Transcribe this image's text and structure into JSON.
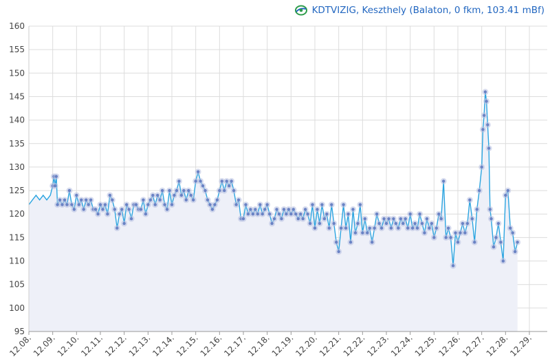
{
  "legend": {
    "label": "KDTVIZIG, Keszthely (Balaton, 0 fkm, 103.41 mBf)"
  },
  "colors": {
    "line": "#2aa4e0",
    "marker": "#6a82c4",
    "markerHalo": "#b6bfe0",
    "area": "#eef0f8",
    "grid": "#dcdcdc",
    "legendText": "#2166c0"
  },
  "icons": {
    "legend_logo": "kdtvizig-logo-icon"
  },
  "chart_data": {
    "type": "line",
    "title": "",
    "xlabel": "",
    "ylabel": "",
    "ylim": [
      95,
      160
    ],
    "yticks": [
      95,
      100,
      105,
      110,
      115,
      120,
      125,
      130,
      135,
      140,
      145,
      150,
      155,
      160
    ],
    "xlim": [
      8.0,
      29.75
    ],
    "xticks": [
      {
        "x": 8,
        "label": "12.08."
      },
      {
        "x": 9,
        "label": "12.09."
      },
      {
        "x": 10,
        "label": "12.10."
      },
      {
        "x": 11,
        "label": "12.11."
      },
      {
        "x": 12,
        "label": "12.12."
      },
      {
        "x": 13,
        "label": "12.13."
      },
      {
        "x": 14,
        "label": "12.14."
      },
      {
        "x": 15,
        "label": "12.15."
      },
      {
        "x": 16,
        "label": "12.16."
      },
      {
        "x": 17,
        "label": "12.17."
      },
      {
        "x": 18,
        "label": "12.18."
      },
      {
        "x": 19,
        "label": "12.19."
      },
      {
        "x": 20,
        "label": "12.20."
      },
      {
        "x": 21,
        "label": "12.21."
      },
      {
        "x": 22,
        "label": "12.22."
      },
      {
        "x": 23,
        "label": "12.23."
      },
      {
        "x": 24,
        "label": "12.24."
      },
      {
        "x": 25,
        "label": "12.25."
      },
      {
        "x": 26,
        "label": "12.26."
      },
      {
        "x": 27,
        "label": "12.27."
      },
      {
        "x": 28,
        "label": "12.28."
      },
      {
        "x": 29,
        "label": "12.29."
      }
    ],
    "grid": true,
    "legend_position": "top-right",
    "series": [
      {
        "name": "KDTVIZIG, Keszthely (Balaton, 0 fkm, 103.41 mBf)",
        "points": [
          [
            8.0,
            122
          ],
          [
            8.15,
            123
          ],
          [
            8.3,
            124
          ],
          [
            8.45,
            123
          ],
          [
            8.6,
            124
          ],
          [
            8.75,
            123
          ],
          [
            8.9,
            124
          ],
          [
            9.0,
            126
          ],
          [
            9.05,
            128
          ],
          [
            9.1,
            126
          ],
          [
            9.15,
            128
          ],
          [
            9.2,
            122
          ],
          [
            9.3,
            123
          ],
          [
            9.4,
            122
          ],
          [
            9.5,
            123
          ],
          [
            9.6,
            122
          ],
          [
            9.7,
            125
          ],
          [
            9.8,
            122
          ],
          [
            9.9,
            121
          ],
          [
            10.0,
            124
          ],
          [
            10.1,
            122
          ],
          [
            10.2,
            123
          ],
          [
            10.3,
            121
          ],
          [
            10.4,
            123
          ],
          [
            10.5,
            122
          ],
          [
            10.6,
            123
          ],
          [
            10.7,
            121
          ],
          [
            10.8,
            121
          ],
          [
            10.9,
            120
          ],
          [
            11.0,
            122
          ],
          [
            11.1,
            121
          ],
          [
            11.2,
            122
          ],
          [
            11.3,
            120
          ],
          [
            11.4,
            124
          ],
          [
            11.5,
            123
          ],
          [
            11.6,
            121
          ],
          [
            11.7,
            117
          ],
          [
            11.8,
            120
          ],
          [
            11.9,
            121
          ],
          [
            12.0,
            118
          ],
          [
            12.1,
            122
          ],
          [
            12.2,
            121
          ],
          [
            12.3,
            119
          ],
          [
            12.4,
            122
          ],
          [
            12.5,
            122
          ],
          [
            12.6,
            121
          ],
          [
            12.7,
            121
          ],
          [
            12.8,
            123
          ],
          [
            12.9,
            120
          ],
          [
            13.0,
            122
          ],
          [
            13.1,
            123
          ],
          [
            13.2,
            124
          ],
          [
            13.3,
            122
          ],
          [
            13.4,
            124
          ],
          [
            13.5,
            123
          ],
          [
            13.6,
            125
          ],
          [
            13.7,
            122
          ],
          [
            13.8,
            121
          ],
          [
            13.9,
            125
          ],
          [
            14.0,
            122
          ],
          [
            14.1,
            124
          ],
          [
            14.2,
            125
          ],
          [
            14.3,
            127
          ],
          [
            14.4,
            124
          ],
          [
            14.5,
            125
          ],
          [
            14.6,
            123
          ],
          [
            14.7,
            125
          ],
          [
            14.8,
            124
          ],
          [
            14.9,
            123
          ],
          [
            15.0,
            127
          ],
          [
            15.1,
            129
          ],
          [
            15.2,
            127
          ],
          [
            15.3,
            126
          ],
          [
            15.4,
            125
          ],
          [
            15.5,
            123
          ],
          [
            15.6,
            122
          ],
          [
            15.7,
            121
          ],
          [
            15.8,
            122
          ],
          [
            15.9,
            123
          ],
          [
            16.0,
            125
          ],
          [
            16.1,
            127
          ],
          [
            16.2,
            125
          ],
          [
            16.3,
            127
          ],
          [
            16.4,
            126
          ],
          [
            16.5,
            127
          ],
          [
            16.6,
            125
          ],
          [
            16.7,
            122
          ],
          [
            16.8,
            123
          ],
          [
            16.9,
            119
          ],
          [
            17.0,
            119
          ],
          [
            17.1,
            122
          ],
          [
            17.2,
            120
          ],
          [
            17.3,
            121
          ],
          [
            17.4,
            120
          ],
          [
            17.5,
            121
          ],
          [
            17.6,
            120
          ],
          [
            17.7,
            122
          ],
          [
            17.8,
            120
          ],
          [
            17.9,
            121
          ],
          [
            18.0,
            122
          ],
          [
            18.1,
            120
          ],
          [
            18.2,
            118
          ],
          [
            18.3,
            119
          ],
          [
            18.4,
            121
          ],
          [
            18.5,
            120
          ],
          [
            18.6,
            119
          ],
          [
            18.7,
            121
          ],
          [
            18.8,
            120
          ],
          [
            18.9,
            121
          ],
          [
            19.0,
            120
          ],
          [
            19.1,
            121
          ],
          [
            19.2,
            120
          ],
          [
            19.3,
            119
          ],
          [
            19.4,
            120
          ],
          [
            19.5,
            119
          ],
          [
            19.6,
            121
          ],
          [
            19.7,
            120
          ],
          [
            19.8,
            118
          ],
          [
            19.9,
            122
          ],
          [
            20.0,
            117
          ],
          [
            20.1,
            121
          ],
          [
            20.2,
            118
          ],
          [
            20.3,
            122
          ],
          [
            20.4,
            119
          ],
          [
            20.5,
            120
          ],
          [
            20.6,
            117
          ],
          [
            20.7,
            122
          ],
          [
            20.8,
            118
          ],
          [
            20.9,
            114
          ],
          [
            21.0,
            112
          ],
          [
            21.1,
            117
          ],
          [
            21.2,
            122
          ],
          [
            21.3,
            117
          ],
          [
            21.4,
            120
          ],
          [
            21.5,
            114
          ],
          [
            21.6,
            121
          ],
          [
            21.7,
            116
          ],
          [
            21.8,
            118
          ],
          [
            21.9,
            122
          ],
          [
            22.0,
            116
          ],
          [
            22.1,
            119
          ],
          [
            22.2,
            116
          ],
          [
            22.3,
            117
          ],
          [
            22.4,
            114
          ],
          [
            22.5,
            117
          ],
          [
            22.6,
            120
          ],
          [
            22.7,
            118
          ],
          [
            22.8,
            117
          ],
          [
            22.9,
            119
          ],
          [
            23.0,
            118
          ],
          [
            23.1,
            119
          ],
          [
            23.2,
            117
          ],
          [
            23.3,
            119
          ],
          [
            23.4,
            118
          ],
          [
            23.5,
            117
          ],
          [
            23.6,
            119
          ],
          [
            23.7,
            118
          ],
          [
            23.8,
            119
          ],
          [
            23.9,
            117
          ],
          [
            24.0,
            120
          ],
          [
            24.1,
            117
          ],
          [
            24.2,
            118
          ],
          [
            24.3,
            117
          ],
          [
            24.4,
            120
          ],
          [
            24.5,
            118
          ],
          [
            24.6,
            116
          ],
          [
            24.7,
            119
          ],
          [
            24.8,
            117
          ],
          [
            24.9,
            118
          ],
          [
            25.0,
            115
          ],
          [
            25.1,
            117
          ],
          [
            25.2,
            120
          ],
          [
            25.3,
            119
          ],
          [
            25.4,
            127
          ],
          [
            25.5,
            115
          ],
          [
            25.6,
            117
          ],
          [
            25.7,
            115
          ],
          [
            25.8,
            109
          ],
          [
            25.9,
            116
          ],
          [
            26.0,
            114
          ],
          [
            26.1,
            116
          ],
          [
            26.2,
            118
          ],
          [
            26.3,
            116
          ],
          [
            26.4,
            118
          ],
          [
            26.5,
            123
          ],
          [
            26.6,
            119
          ],
          [
            26.7,
            114
          ],
          [
            26.8,
            121
          ],
          [
            26.9,
            125
          ],
          [
            27.0,
            130
          ],
          [
            27.05,
            138
          ],
          [
            27.1,
            141
          ],
          [
            27.15,
            146
          ],
          [
            27.2,
            144
          ],
          [
            27.25,
            139
          ],
          [
            27.3,
            134
          ],
          [
            27.35,
            121
          ],
          [
            27.4,
            119
          ],
          [
            27.5,
            113
          ],
          [
            27.6,
            115
          ],
          [
            27.7,
            118
          ],
          [
            27.8,
            114
          ],
          [
            27.9,
            110
          ],
          [
            28.0,
            124
          ],
          [
            28.1,
            125
          ],
          [
            28.2,
            117
          ],
          [
            28.3,
            116
          ],
          [
            28.4,
            112
          ],
          [
            28.5,
            114
          ]
        ]
      }
    ]
  }
}
